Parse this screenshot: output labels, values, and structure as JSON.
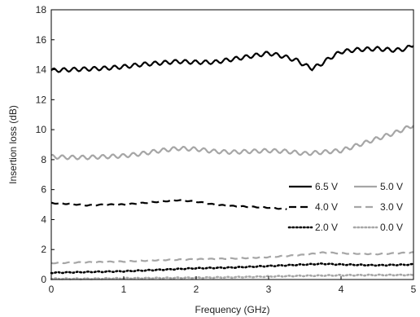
{
  "chart_data": {
    "type": "line",
    "title": "",
    "xlabel": "Frequency (GHz)",
    "ylabel": "Insertion loss (dB)",
    "xlim": [
      0,
      5
    ],
    "ylim": [
      0,
      18
    ],
    "xticks": [
      "0",
      "1",
      "2",
      "3",
      "4",
      "5"
    ],
    "yticks": [
      "0",
      "2",
      "4",
      "6",
      "8",
      "10",
      "12",
      "14",
      "16",
      "18"
    ],
    "grid": false,
    "legend_position": "right-middle",
    "series": [
      {
        "name": "6.5 V",
        "color": "#000000",
        "dash": "solid",
        "x": [
          0,
          0.25,
          0.5,
          0.75,
          1.0,
          1.25,
          1.5,
          1.75,
          2.0,
          2.25,
          2.5,
          2.75,
          3.0,
          3.2,
          3.4,
          3.5,
          3.6,
          3.7,
          3.85,
          4.0,
          4.25,
          4.5,
          4.75,
          4.9,
          5.0
        ],
        "y": [
          13.95,
          14.0,
          14.05,
          14.1,
          14.2,
          14.35,
          14.45,
          14.55,
          14.5,
          14.5,
          14.7,
          14.9,
          15.1,
          14.9,
          14.6,
          14.3,
          14.1,
          14.3,
          14.8,
          15.2,
          15.35,
          15.4,
          15.3,
          15.4,
          15.7
        ]
      },
      {
        "name": "5.0 V",
        "color": "#a6a6a6",
        "dash": "solid",
        "x": [
          0,
          0.25,
          0.5,
          0.75,
          1.0,
          1.25,
          1.5,
          1.75,
          2.0,
          2.25,
          2.5,
          2.75,
          3.0,
          3.25,
          3.5,
          3.75,
          4.0,
          4.25,
          4.5,
          4.75,
          5.0
        ],
        "y": [
          8.2,
          8.15,
          8.15,
          8.2,
          8.25,
          8.4,
          8.6,
          8.75,
          8.7,
          8.55,
          8.5,
          8.55,
          8.6,
          8.55,
          8.4,
          8.5,
          8.6,
          9.0,
          9.4,
          9.8,
          10.3
        ]
      },
      {
        "name": "4.0 V",
        "color": "#000000",
        "dash": "long-dash",
        "x": [
          0,
          0.25,
          0.5,
          0.75,
          1.0,
          1.25,
          1.5,
          1.75,
          2.0,
          2.25,
          2.5,
          2.75,
          3.0,
          3.25
        ],
        "y": [
          5.1,
          5.05,
          4.95,
          5.0,
          5.0,
          5.1,
          5.2,
          5.3,
          5.2,
          5.0,
          4.9,
          4.85,
          4.8,
          4.7
        ]
      },
      {
        "name": "3.0 V",
        "color": "#a6a6a6",
        "dash": "long-dash",
        "x": [
          0,
          0.5,
          1.0,
          1.5,
          2.0,
          2.5,
          3.0,
          3.5,
          3.75,
          4.0,
          4.5,
          5.0
        ],
        "y": [
          1.1,
          1.15,
          1.2,
          1.3,
          1.35,
          1.4,
          1.5,
          1.65,
          1.8,
          1.75,
          1.7,
          1.8
        ]
      },
      {
        "name": "2.0 V",
        "color": "#000000",
        "dash": "dot",
        "x": [
          0,
          0.5,
          1.0,
          1.5,
          2.0,
          2.5,
          3.0,
          3.5,
          3.75,
          4.0,
          4.5,
          5.0
        ],
        "y": [
          0.45,
          0.5,
          0.55,
          0.65,
          0.75,
          0.8,
          0.9,
          1.0,
          1.05,
          1.0,
          0.95,
          1.0
        ]
      },
      {
        "name": "0.0 V",
        "color": "#a6a6a6",
        "dash": "dot",
        "x": [
          0,
          0.5,
          1.0,
          1.5,
          2.0,
          2.5,
          3.0,
          3.5,
          4.0,
          4.5,
          5.0
        ],
        "y": [
          0.05,
          0.05,
          0.08,
          0.1,
          0.12,
          0.15,
          0.2,
          0.25,
          0.28,
          0.3,
          0.3
        ]
      }
    ]
  }
}
